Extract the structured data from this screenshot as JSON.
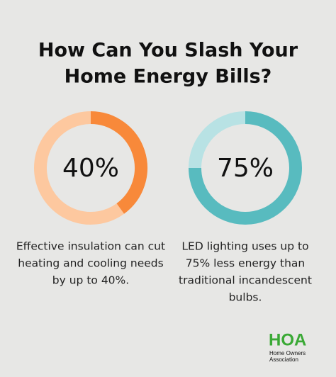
{
  "title": [
    "How Can You Slash Your",
    "Home Energy Bills?"
  ],
  "chart_data": [
    {
      "type": "donut",
      "values": [
        40,
        60
      ],
      "value_labels": [
        "40%",
        null
      ],
      "colors": [
        "#f8893a",
        "#fdc89f"
      ],
      "description": [
        "Effective insulation can cut",
        "heating and cooling needs",
        "by up to 40%."
      ]
    },
    {
      "type": "donut",
      "values": [
        75,
        25
      ],
      "value_labels": [
        "75%",
        null
      ],
      "colors": [
        "#58bbbf",
        "#b8e2e4"
      ],
      "description": [
        "LED lighting uses up to",
        "75% less energy than",
        "traditional incandescent",
        "bulbs."
      ]
    }
  ],
  "logo": {
    "mark": "HOA",
    "line1": "Home Owners",
    "line2": "Association",
    "color": "#3aa935"
  }
}
